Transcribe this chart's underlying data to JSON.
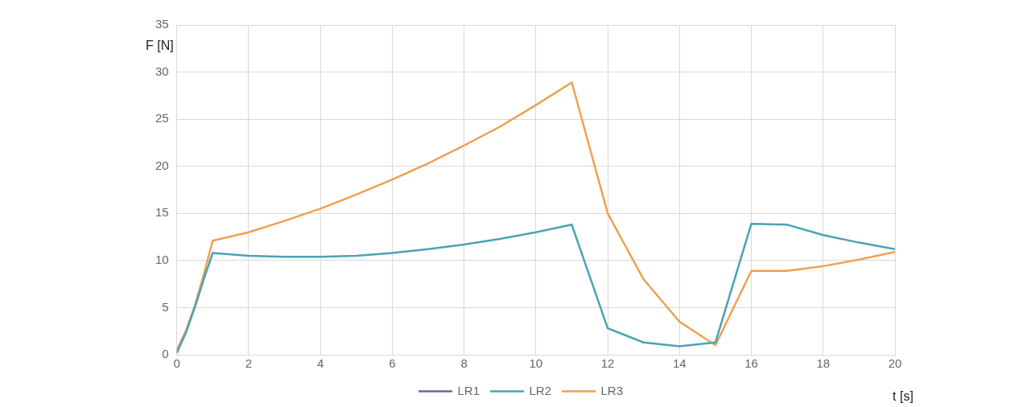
{
  "chart_data": {
    "type": "line",
    "xlabel": "t [s]",
    "ylabel": "F [N]",
    "xlim": [
      0,
      20
    ],
    "xticks": [
      0,
      2,
      4,
      6,
      8,
      10,
      12,
      14,
      16,
      18,
      20
    ],
    "ylim": [
      0,
      35
    ],
    "yticks": [
      0,
      5,
      10,
      15,
      20,
      25,
      30,
      35
    ],
    "grid": true,
    "legend": "bottom",
    "marker": "none",
    "line_style": "solid",
    "series": [
      {
        "name": "LR1",
        "color": "#7b5ea0"
      },
      {
        "name": "LR2",
        "color": "#4aa3b5",
        "x": [
          0,
          0.25,
          0.5,
          0.75,
          1,
          2,
          3,
          4,
          5,
          6,
          7,
          8,
          9,
          10,
          11,
          12,
          13,
          14,
          15,
          16,
          17,
          18,
          19,
          20
        ],
        "values": [
          0.2,
          2.3,
          5,
          8,
          10.8,
          10.5,
          10.4,
          10.4,
          10.5,
          10.8,
          11.2,
          11.7,
          12.3,
          13.0,
          13.8,
          2.8,
          1.3,
          0.9,
          1.3,
          13.9,
          13.8,
          12.7,
          11.9,
          11.2
        ]
      },
      {
        "name": "LR3",
        "color": "#f0a050",
        "x": [
          0,
          0.25,
          0.5,
          0.75,
          1,
          2,
          3,
          4,
          5,
          6,
          7,
          8,
          9,
          10,
          11,
          12,
          13,
          14,
          15,
          16,
          17,
          18,
          19,
          20
        ],
        "values": [
          0.5,
          2.5,
          5.2,
          8.5,
          12.1,
          13.0,
          14.2,
          15.5,
          17.0,
          18.6,
          20.3,
          22.2,
          24.2,
          26.5,
          28.9,
          15.0,
          8.0,
          3.5,
          1.0,
          8.9,
          8.9,
          9.4,
          10.1,
          10.9
        ]
      }
    ]
  }
}
